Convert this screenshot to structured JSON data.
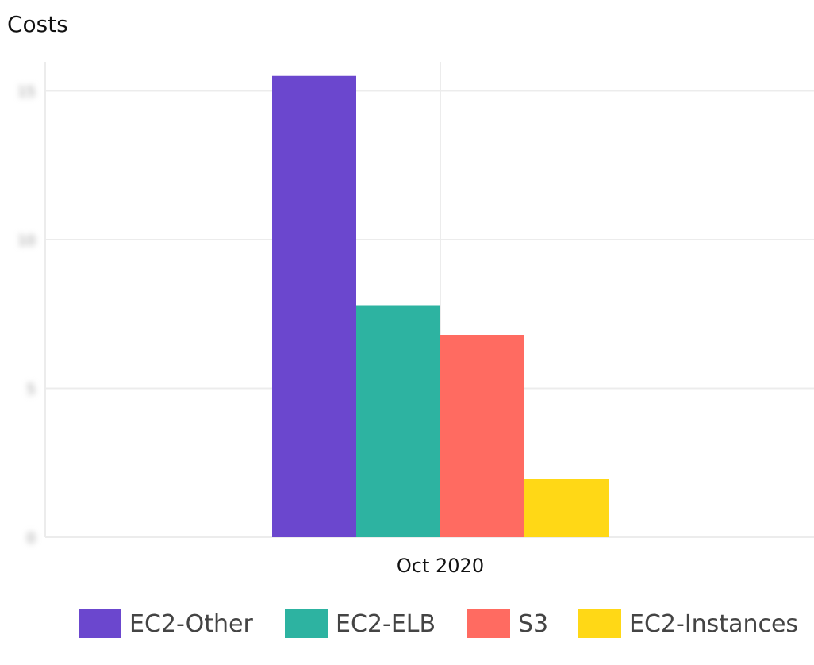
{
  "chart_data": {
    "type": "bar",
    "title": "Costs",
    "categories": [
      "Oct 2020"
    ],
    "series": [
      {
        "name": "EC2-Other",
        "values": [
          15.5
        ],
        "color": "#6b47ce"
      },
      {
        "name": "EC2-ELB",
        "values": [
          7.8
        ],
        "color": "#2db3a1"
      },
      {
        "name": "S3",
        "values": [
          6.8
        ],
        "color": "#ff6b61"
      },
      {
        "name": "EC2-Instances",
        "values": [
          1.95
        ],
        "color": "#ffd816"
      }
    ],
    "yticks": [
      0,
      5,
      10,
      15
    ],
    "ytick_labels_obscured": true,
    "ylim": [
      0,
      16
    ],
    "grid": true,
    "legend": "bottom"
  }
}
